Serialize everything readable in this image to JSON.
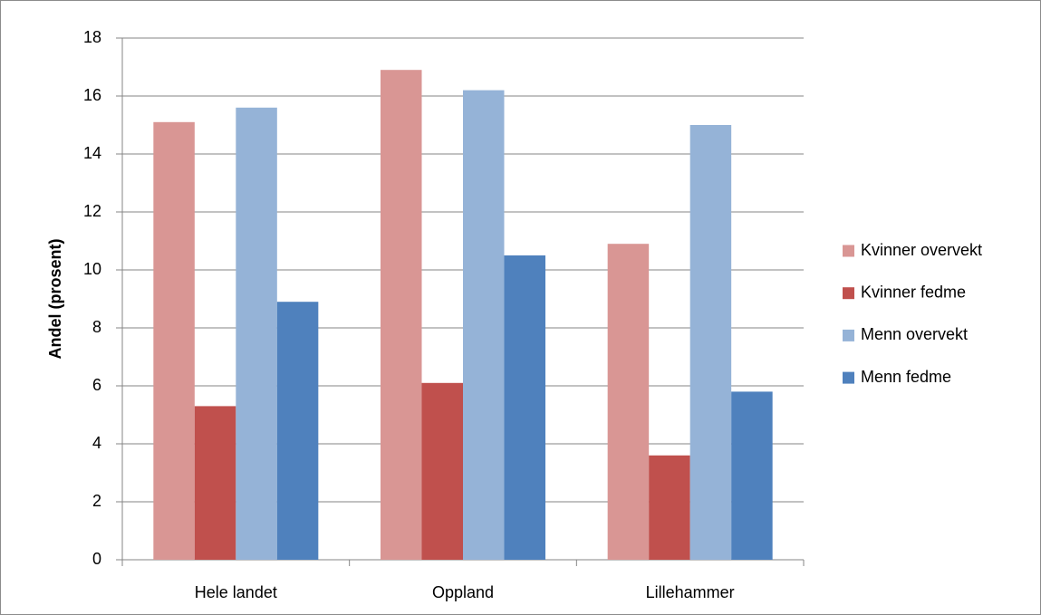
{
  "chart_data": {
    "type": "bar",
    "y_label": "Andel (prosent)",
    "categories": [
      "Hele landet",
      "Oppland",
      "Lillehammer"
    ],
    "series": [
      {
        "name": "Kvinner overvekt",
        "color": "#d99694",
        "values": [
          15.1,
          16.9,
          10.9
        ]
      },
      {
        "name": "Kvinner fedme",
        "color": "#c0504d",
        "values": [
          5.3,
          6.1,
          3.6
        ]
      },
      {
        "name": "Menn overvekt",
        "color": "#95b3d7",
        "values": [
          15.6,
          16.2,
          15.0
        ]
      },
      {
        "name": "Menn fedme",
        "color": "#4f81bd",
        "values": [
          8.9,
          10.5,
          5.8
        ]
      }
    ],
    "ylim": [
      0,
      18
    ],
    "yticks": [
      0,
      2,
      4,
      6,
      8,
      10,
      12,
      14,
      16,
      18
    ],
    "grid": true,
    "legend": "right"
  }
}
